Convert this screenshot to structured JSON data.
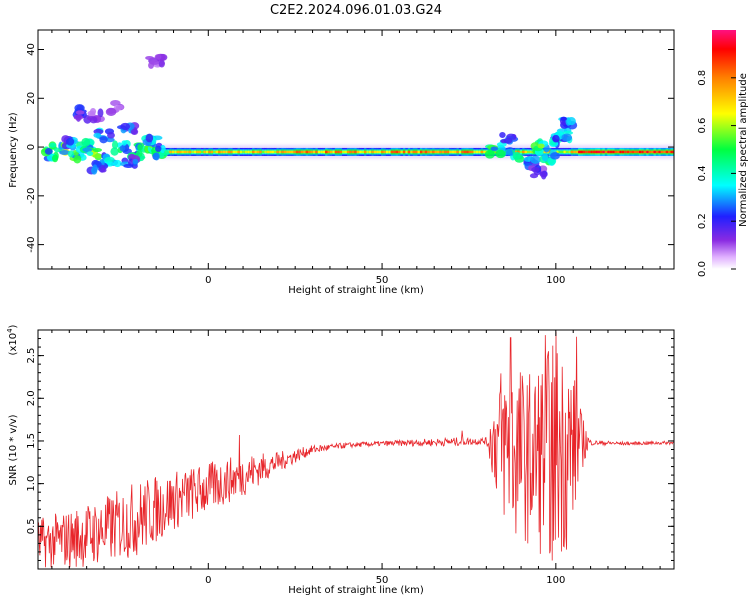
{
  "title": "C2E2.2024.096.01.03.G24",
  "colors": {
    "line": "#e8252a",
    "axis": "#000000"
  },
  "chart_data": [
    {
      "type": "heatmap",
      "xlabel": "Height of straight line (km)",
      "ylabel": "Frequency (Hz)",
      "xlim": [
        -49,
        134
      ],
      "ylim": [
        -50,
        48
      ],
      "xticks": [
        "0",
        "50",
        "100"
      ],
      "yticks": [
        "40",
        "20",
        "0",
        "-20",
        "-40"
      ],
      "colorbar": {
        "label": "Normalized spectral amplitude",
        "range": [
          0,
          1
        ],
        "ticks": [
          "0.0",
          "0.2",
          "0.4",
          "0.6",
          "0.8"
        ]
      },
      "band_center_hz": -2,
      "blobs": [
        {
          "x": -45,
          "f": -3,
          "a": 0.45
        },
        {
          "x": -43,
          "f": -1,
          "a": 0.55
        },
        {
          "x": -40,
          "f": 2,
          "a": 0.3
        },
        {
          "x": -38,
          "f": -4,
          "a": 0.5
        },
        {
          "x": -35,
          "f": 0,
          "a": 0.4
        },
        {
          "x": -33,
          "f": -2,
          "a": 0.55
        },
        {
          "x": -30,
          "f": 5,
          "a": 0.3
        },
        {
          "x": -28,
          "f": -5,
          "a": 0.35
        },
        {
          "x": -25,
          "f": 0,
          "a": 0.45
        },
        {
          "x": -23,
          "f": 7,
          "a": 0.25
        },
        {
          "x": -20,
          "f": -3,
          "a": 0.4
        },
        {
          "x": -18,
          "f": -1,
          "a": 0.5
        },
        {
          "x": -16,
          "f": 2,
          "a": 0.35
        },
        {
          "x": -14,
          "f": -2,
          "a": 0.45
        },
        {
          "x": -37,
          "f": 14,
          "a": 0.2
        },
        {
          "x": -33,
          "f": 13,
          "a": 0.15
        },
        {
          "x": -27,
          "f": 16,
          "a": 0.12
        },
        {
          "x": -15,
          "f": 35,
          "a": 0.12
        },
        {
          "x": -32,
          "f": -8,
          "a": 0.25
        },
        {
          "x": -22,
          "f": -6,
          "a": 0.25
        },
        {
          "x": 83,
          "f": -1,
          "a": 0.45
        },
        {
          "x": 86,
          "f": 3,
          "a": 0.3
        },
        {
          "x": 88,
          "f": -3,
          "a": 0.4
        },
        {
          "x": 93,
          "f": -7,
          "a": 0.3
        },
        {
          "x": 96,
          "f": 0,
          "a": 0.5
        },
        {
          "x": 98,
          "f": -4,
          "a": 0.45
        },
        {
          "x": 100,
          "f": 3,
          "a": 0.4
        },
        {
          "x": 102,
          "f": 5,
          "a": 0.35
        },
        {
          "x": 104,
          "f": 10,
          "a": 0.3
        },
        {
          "x": 95,
          "f": -10,
          "a": 0.2
        }
      ]
    },
    {
      "type": "line",
      "xlabel": "Height of straight line (km)",
      "ylabel": "SNR (10 * v/v)",
      "yscale_label": "(x10",
      "yscale_exp": "4",
      "yscale_close": ")",
      "xlim": [
        -49,
        134
      ],
      "ylim": [
        0,
        2.8
      ],
      "xticks": [
        "0",
        "50",
        "100"
      ],
      "yticks": [
        "0.5",
        "1.0",
        "1.5",
        "2.0",
        "2.5"
      ],
      "envelope": {
        "x": [
          -49,
          -40,
          -30,
          -20,
          -10,
          0,
          10,
          20,
          30,
          40,
          50,
          60,
          70,
          80,
          84,
          88,
          92,
          96,
          100,
          104,
          107,
          110,
          120,
          134
        ],
        "mean": [
          0.3,
          0.35,
          0.45,
          0.6,
          0.8,
          0.95,
          1.1,
          1.25,
          1.4,
          1.45,
          1.47,
          1.48,
          1.49,
          1.5,
          1.5,
          1.4,
          1.3,
          1.35,
          1.4,
          1.4,
          1.5,
          1.48,
          1.47,
          1.48
        ],
        "amp": [
          0.3,
          0.35,
          0.4,
          0.45,
          0.35,
          0.3,
          0.25,
          0.12,
          0.05,
          0.03,
          0.03,
          0.04,
          0.05,
          0.04,
          0.9,
          1.1,
          1.0,
          1.2,
          1.3,
          1.2,
          0.4,
          0.03,
          0.02,
          0.02
        ]
      },
      "peaks": [
        {
          "x": 9,
          "y": 1.57
        },
        {
          "x": 73,
          "y": 1.62
        },
        {
          "x": 84,
          "y": 2.08
        },
        {
          "x": 87,
          "y": 2.71
        },
        {
          "x": 97,
          "y": 2.74
        },
        {
          "x": 100,
          "y": 2.78
        },
        {
          "x": 106,
          "y": 2.72
        },
        {
          "x": 99,
          "y": 0.1
        }
      ]
    }
  ]
}
